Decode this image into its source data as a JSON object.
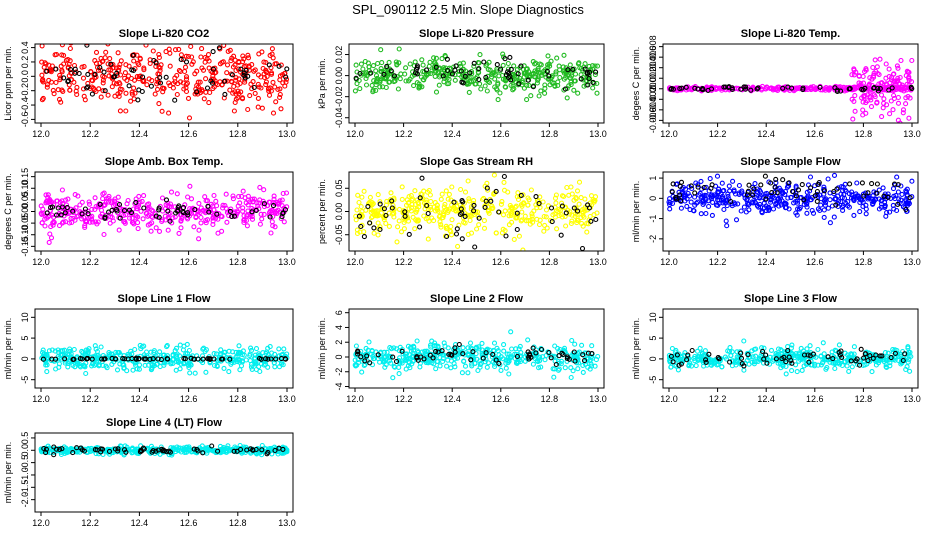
{
  "title": "SPL_090112  2.5 Min. Slope Diagnostics",
  "x_ticks": [
    "12.0",
    "12.2",
    "12.4",
    "12.6",
    "12.8",
    "13.0"
  ],
  "chart_data": [
    {
      "type": "scatter",
      "title": "Slope Li-820 CO2",
      "ylabel": "Licor ppm per min.",
      "xlim": [
        12.0,
        13.0
      ],
      "ylim": [
        -0.65,
        0.45
      ],
      "yticks": [
        -0.6,
        -0.4,
        -0.2,
        0.0,
        0.2,
        0.4
      ],
      "ytick_labels": [
        "-0.6",
        "-0.4",
        "-0.2",
        "0.0",
        "0.2",
        "0.4"
      ],
      "series": [
        {
          "color": "#ff0000",
          "center": 0.0,
          "spread": 0.2,
          "count": 420
        },
        {
          "color": "#000000",
          "center": 0.0,
          "spread": 0.18,
          "count": 60
        }
      ]
    },
    {
      "type": "scatter",
      "title": "Slope Li-820 Pressure",
      "ylabel": "kPa per min.",
      "xlim": [
        12.0,
        13.0
      ],
      "ylim": [
        -0.045,
        0.03
      ],
      "yticks": [
        -0.04,
        -0.02,
        0.0,
        0.02
      ],
      "ytick_labels": [
        "-0.04",
        "-0.02",
        "0.00",
        "0.02"
      ],
      "series": [
        {
          "color": "#22bb22",
          "center": 0.0,
          "spread": 0.008,
          "count": 420
        },
        {
          "color": "#000000",
          "center": 0.003,
          "spread": 0.006,
          "count": 60
        }
      ]
    },
    {
      "type": "scatter",
      "title": "Slope Li-820 Temp.",
      "ylabel": "degees C per min.",
      "xlim": [
        12.0,
        13.0
      ],
      "ylim": [
        -0.0065,
        0.0085
      ],
      "yticks": [
        -0.006,
        -0.004,
        -0.002,
        0.0,
        0.002,
        0.004,
        0.006,
        0.008
      ],
      "ytick_labels": [
        "-0.006",
        "-0.004",
        "-0.002",
        "0.000",
        "0.002",
        "0.004",
        "0.006",
        "0.008"
      ],
      "series": [
        {
          "color": "#ff00ff",
          "center": 0.0,
          "spread": 0.0002,
          "count": 260
        },
        {
          "color": "#ff00ff",
          "center": 0.0,
          "spread": 0.0025,
          "count": 140,
          "xrange": [
            12.75,
            13.0
          ]
        },
        {
          "color": "#000000",
          "center": 0.0,
          "spread": 0.0002,
          "count": 50
        }
      ]
    },
    {
      "type": "scatter",
      "title": "Slope Amb. Box Temp.",
      "ylabel": "degrees C per min.",
      "xlim": [
        12.0,
        13.0
      ],
      "ylim": [
        -0.17,
        0.17
      ],
      "yticks": [
        -0.15,
        -0.1,
        -0.05,
        0.0,
        0.05,
        0.1,
        0.15
      ],
      "ytick_labels": [
        "-0.15",
        "-0.10",
        "-0.05",
        "0.00",
        "0.05",
        "0.10",
        "0.15"
      ],
      "series": [
        {
          "color": "#ff00ff",
          "center": 0.0,
          "spread": 0.04,
          "count": 420
        },
        {
          "color": "#000000",
          "center": 0.0,
          "spread": 0.02,
          "count": 60
        }
      ]
    },
    {
      "type": "scatter",
      "title": "Slope Gas Stream RH",
      "ylabel": "percent per min.",
      "xlim": [
        12.0,
        13.0
      ],
      "ylim": [
        -0.085,
        0.085
      ],
      "yticks": [
        -0.05,
        0.0,
        0.05
      ],
      "ytick_labels": [
        "-0.05",
        "0.00",
        "0.05"
      ],
      "series": [
        {
          "color": "#ffff00",
          "center": 0.0,
          "spread": 0.025,
          "count": 420
        },
        {
          "color": "#000000",
          "center": 0.0,
          "spread": 0.03,
          "count": 60
        }
      ]
    },
    {
      "type": "scatter",
      "title": "Slope Sample Flow",
      "ylabel": "ml/min per min.",
      "xlim": [
        12.0,
        13.0
      ],
      "ylim": [
        -2.6,
        1.3
      ],
      "yticks": [
        -2,
        -1,
        0,
        1
      ],
      "ytick_labels": [
        "-2",
        "-1",
        "0",
        "1"
      ],
      "series": [
        {
          "color": "#0000ff",
          "center": 0.0,
          "spread": 0.4,
          "count": 420
        },
        {
          "color": "#000000",
          "center": 0.3,
          "spread": 0.4,
          "count": 60
        }
      ]
    },
    {
      "type": "scatter",
      "title": "Slope Line 1 Flow",
      "ylabel": "ml/min per min.",
      "xlim": [
        12.0,
        13.0
      ],
      "ylim": [
        -7,
        12
      ],
      "yticks": [
        -5,
        0,
        5,
        10
      ],
      "ytick_labels": [
        "-5",
        "0",
        "5",
        "10"
      ],
      "series": [
        {
          "color": "#00eeee",
          "center": 0.0,
          "spread": 1.4,
          "count": 420
        },
        {
          "color": "#000000",
          "center": 0.0,
          "spread": 0.1,
          "count": 60
        }
      ]
    },
    {
      "type": "scatter",
      "title": "Slope Line 2 Flow",
      "ylabel": "ml/min per min.",
      "xlim": [
        12.0,
        13.0
      ],
      "ylim": [
        -4.2,
        6.5
      ],
      "yticks": [
        -4,
        -2,
        0,
        2,
        4,
        6
      ],
      "ytick_labels": [
        "-4",
        "-2",
        "0",
        "2",
        "4",
        "6"
      ],
      "series": [
        {
          "color": "#00eeee",
          "center": 0.0,
          "spread": 0.9,
          "count": 420
        },
        {
          "color": "#000000",
          "center": 0.2,
          "spread": 0.6,
          "count": 60
        }
      ]
    },
    {
      "type": "scatter",
      "title": "Slope Line 3 Flow",
      "ylabel": "ml/min per min.",
      "xlim": [
        12.0,
        13.0
      ],
      "ylim": [
        -7,
        12
      ],
      "yticks": [
        -5,
        0,
        5,
        10
      ],
      "ytick_labels": [
        "-5",
        "0",
        "5",
        "10"
      ],
      "series": [
        {
          "color": "#00eeee",
          "center": 0.0,
          "spread": 1.3,
          "count": 420
        },
        {
          "color": "#000000",
          "center": 0.2,
          "spread": 0.9,
          "count": 60
        }
      ]
    },
    {
      "type": "scatter",
      "title": "Slope Line 4 (LT) Flow",
      "ylabel": "ml/min per min.",
      "xlim": [
        12.0,
        13.0
      ],
      "ylim": [
        -2.5,
        0.7
      ],
      "yticks": [
        -2.0,
        -1.5,
        -1.0,
        -0.5,
        0.0,
        0.5
      ],
      "ytick_labels": [
        "-2.0",
        "-1.5",
        "-1.0",
        "-0.5",
        "0.0",
        "0.5"
      ],
      "series": [
        {
          "color": "#00eeee",
          "center": 0.0,
          "spread": 0.07,
          "count": 420
        },
        {
          "color": "#000000",
          "center": 0.0,
          "spread": 0.07,
          "count": 60
        }
      ]
    }
  ]
}
